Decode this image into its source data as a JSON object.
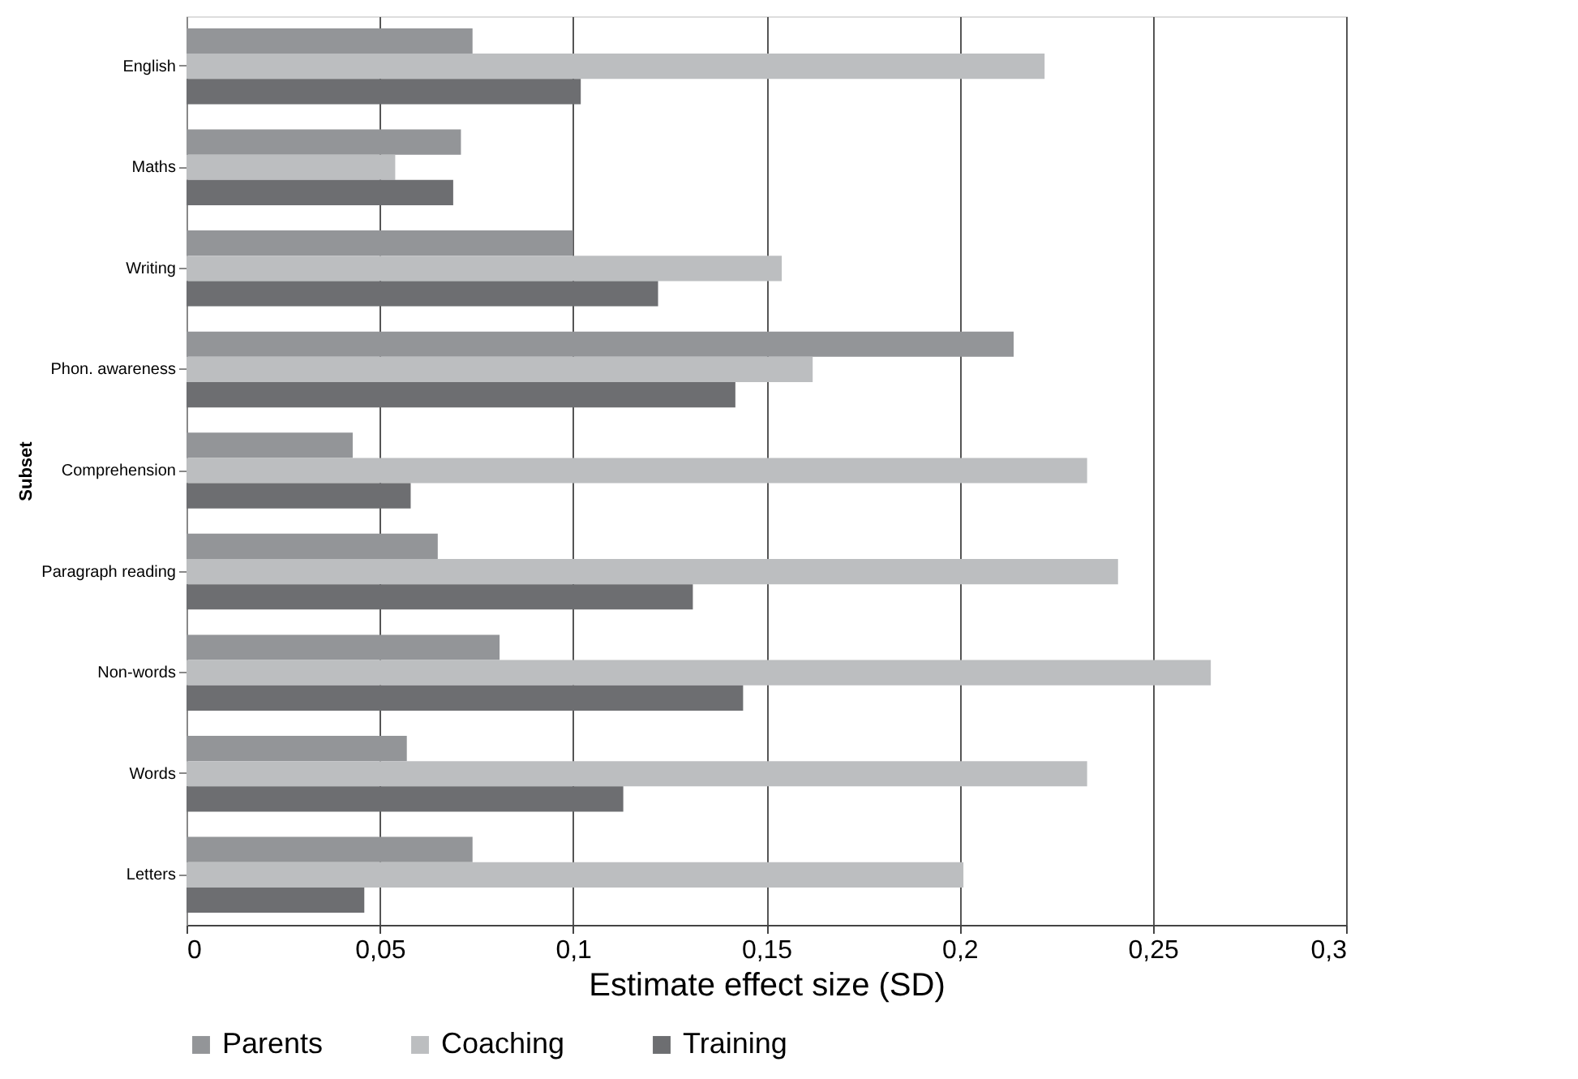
{
  "chart_data": {
    "type": "bar",
    "orientation": "horizontal",
    "xlabel": "Estimate effect size (SD)",
    "ylabel": "Subset",
    "categories": [
      "English",
      "Maths",
      "Writing",
      "Phon. awareness",
      "Comprehension",
      "Paragraph reading",
      "Non-words",
      "Words",
      "Letters"
    ],
    "series": [
      {
        "name": "Parents",
        "color": "#939598",
        "values": [
          0.074,
          0.071,
          0.1,
          0.214,
          0.043,
          0.065,
          0.081,
          0.057,
          0.074
        ]
      },
      {
        "name": "Coaching",
        "color": "#bcbec0",
        "values": [
          0.222,
          0.054,
          0.154,
          0.162,
          0.233,
          0.241,
          0.265,
          0.233,
          0.201
        ]
      },
      {
        "name": "Training",
        "color": "#6d6e71",
        "values": [
          0.102,
          0.069,
          0.122,
          0.142,
          0.058,
          0.131,
          0.144,
          0.113,
          0.046
        ]
      }
    ],
    "xlim": [
      0,
      0.3
    ],
    "xticks": [
      0,
      {
        "value": 0.05,
        "label": "0,05"
      },
      {
        "value": 0.1,
        "label": "0,1"
      },
      {
        "value": 0.15,
        "label": "0,15"
      },
      {
        "value": 0.2,
        "label": "0,2"
      },
      {
        "value": 0.25,
        "label": "0,25"
      },
      {
        "value": 0.3,
        "label": "0,3"
      }
    ],
    "grid": "x",
    "legend": "bottom"
  }
}
